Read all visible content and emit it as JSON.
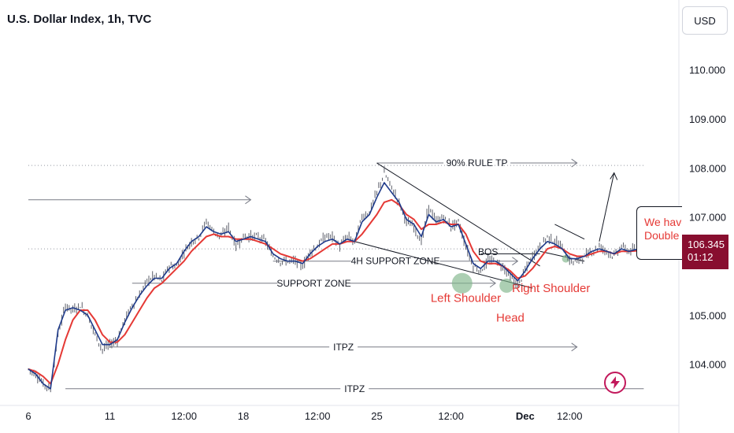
{
  "header": {
    "title": "U.S. Dollar Index, 1h, TVC",
    "currency_button": "USD"
  },
  "price_tag": {
    "price": "106.345",
    "countdown": "01:12",
    "color": "#880e2f"
  },
  "note": {
    "line1": "We have",
    "line2": "Double b"
  },
  "alert_icon": "lightning-icon",
  "colors": {
    "ema_fast": "#1e3a8a",
    "ema_slow": "#e53935",
    "candle": "#5d606b",
    "annotation_red": "#e53935",
    "annotation_green": "#7fb58a"
  },
  "chart_data": {
    "type": "line",
    "symbol": "U.S. Dollar Index",
    "timeframe": "1h",
    "source": "TVC",
    "ylim": [
      103.4,
      110.7
    ],
    "y_ticks": [
      "110.000",
      "109.000",
      "108.000",
      "107.000",
      "105.000",
      "104.000"
    ],
    "x_ticks": [
      "6",
      "11",
      "12:00",
      "18",
      "12:00",
      "25",
      "12:00",
      "Dec",
      "12:00"
    ],
    "x_tick_pos": [
      0,
      11,
      21,
      29,
      39,
      47,
      57,
      67,
      73
    ],
    "x_len": 83,
    "current_price": 106.345,
    "series": [
      {
        "key": "price",
        "values": [
          103.9,
          103.8,
          103.6,
          103.5,
          104.6,
          105.2,
          105.1,
          105.2,
          105.0,
          104.6,
          104.3,
          104.4,
          104.5,
          104.9,
          105.2,
          105.4,
          105.7,
          105.8,
          105.7,
          106.0,
          106.0,
          106.3,
          106.5,
          106.6,
          106.9,
          106.7,
          106.6,
          106.8,
          106.4,
          106.6,
          106.6,
          106.6,
          106.5,
          106.2,
          106.1,
          106.1,
          106.1,
          106.0,
          106.3,
          106.4,
          106.6,
          106.6,
          106.4,
          106.6,
          106.5,
          107.0,
          107.1,
          107.5,
          107.9,
          107.6,
          107.3,
          106.9,
          106.8,
          106.5,
          107.2,
          106.9,
          107.0,
          106.8,
          106.9,
          106.4,
          106.0,
          105.9,
          106.1,
          106.1,
          106.0,
          105.8,
          105.6,
          105.9,
          106.2,
          106.4,
          106.6,
          106.5,
          106.4,
          106.1,
          106.1,
          106.2,
          106.3,
          106.4,
          106.3,
          106.2,
          106.4,
          106.3,
          106.345
        ]
      },
      {
        "key": "ema_fast",
        "values": [
          103.9,
          103.8,
          103.6,
          103.5,
          104.7,
          105.1,
          105.15,
          105.1,
          105.0,
          104.7,
          104.4,
          104.4,
          104.5,
          104.85,
          105.15,
          105.4,
          105.6,
          105.75,
          105.75,
          105.95,
          106.05,
          106.3,
          106.5,
          106.6,
          106.8,
          106.7,
          106.65,
          106.7,
          106.5,
          106.55,
          106.6,
          106.55,
          106.5,
          106.25,
          106.15,
          106.1,
          106.1,
          106.05,
          106.25,
          106.4,
          106.5,
          106.55,
          106.45,
          106.55,
          106.5,
          106.9,
          107.05,
          107.4,
          107.7,
          107.5,
          107.3,
          106.95,
          106.85,
          106.6,
          107.05,
          106.9,
          106.95,
          106.8,
          106.85,
          106.45,
          106.05,
          105.95,
          106.1,
          106.1,
          106.0,
          105.85,
          105.7,
          105.9,
          106.15,
          106.35,
          106.5,
          106.45,
          106.35,
          106.15,
          106.15,
          106.2,
          106.3,
          106.35,
          106.3,
          106.25,
          106.35,
          106.3,
          106.34
        ]
      },
      {
        "key": "ema_slow",
        "values": [
          103.9,
          103.85,
          103.75,
          103.6,
          104.0,
          104.5,
          104.9,
          105.1,
          105.1,
          104.9,
          104.6,
          104.45,
          104.45,
          104.6,
          104.85,
          105.1,
          105.35,
          105.55,
          105.65,
          105.8,
          105.95,
          106.1,
          106.3,
          106.45,
          106.6,
          106.65,
          106.6,
          106.6,
          106.55,
          106.55,
          106.55,
          106.5,
          106.45,
          106.35,
          106.25,
          106.2,
          106.15,
          106.1,
          106.15,
          106.25,
          106.35,
          106.45,
          106.45,
          106.5,
          106.5,
          106.65,
          106.85,
          107.05,
          107.3,
          107.35,
          107.25,
          107.05,
          106.95,
          106.75,
          106.85,
          106.85,
          106.9,
          106.85,
          106.85,
          106.65,
          106.3,
          106.1,
          106.05,
          106.05,
          106.0,
          105.9,
          105.75,
          105.8,
          105.95,
          106.15,
          106.35,
          106.4,
          106.35,
          106.25,
          106.2,
          106.2,
          106.25,
          106.3,
          106.3,
          106.25,
          106.3,
          106.3,
          106.31
        ]
      }
    ],
    "annotations": [
      {
        "type": "hline",
        "label": "90% RULE TP",
        "y": 108.1,
        "x1": 47,
        "x2": 74
      },
      {
        "type": "hline",
        "label": "",
        "y": 108.05,
        "x1": 0,
        "x2": 83,
        "dotted": true
      },
      {
        "type": "hline",
        "label": "",
        "y": 107.35,
        "x1": 0,
        "x2": 30
      },
      {
        "type": "hline",
        "label": "4H SUPPORT ZONE",
        "y": 106.1,
        "x1": 33,
        "x2": 66
      },
      {
        "type": "hline",
        "label": "SUPPORT ZONE",
        "y": 105.65,
        "x1": 14,
        "x2": 63
      },
      {
        "type": "hline",
        "label": "ITPZ",
        "y": 104.35,
        "x1": 11,
        "x2": 74
      },
      {
        "type": "hline",
        "label": "ITPZ",
        "y": 103.5,
        "x1": 5,
        "x2": 83
      },
      {
        "type": "hline",
        "label": "",
        "y": 106.35,
        "x1": 0,
        "x2": 83,
        "dotted": true
      },
      {
        "type": "text",
        "label": "BOS",
        "x": 62,
        "y": 106.3
      },
      {
        "type": "text",
        "label": "Left Shoulder",
        "x": 59,
        "y": 105.35
      },
      {
        "type": "text",
        "label": "Head",
        "x": 65,
        "y": 104.95
      },
      {
        "type": "text",
        "label": "Right Shoulder",
        "x": 70.5,
        "y": 105.55
      }
    ]
  }
}
